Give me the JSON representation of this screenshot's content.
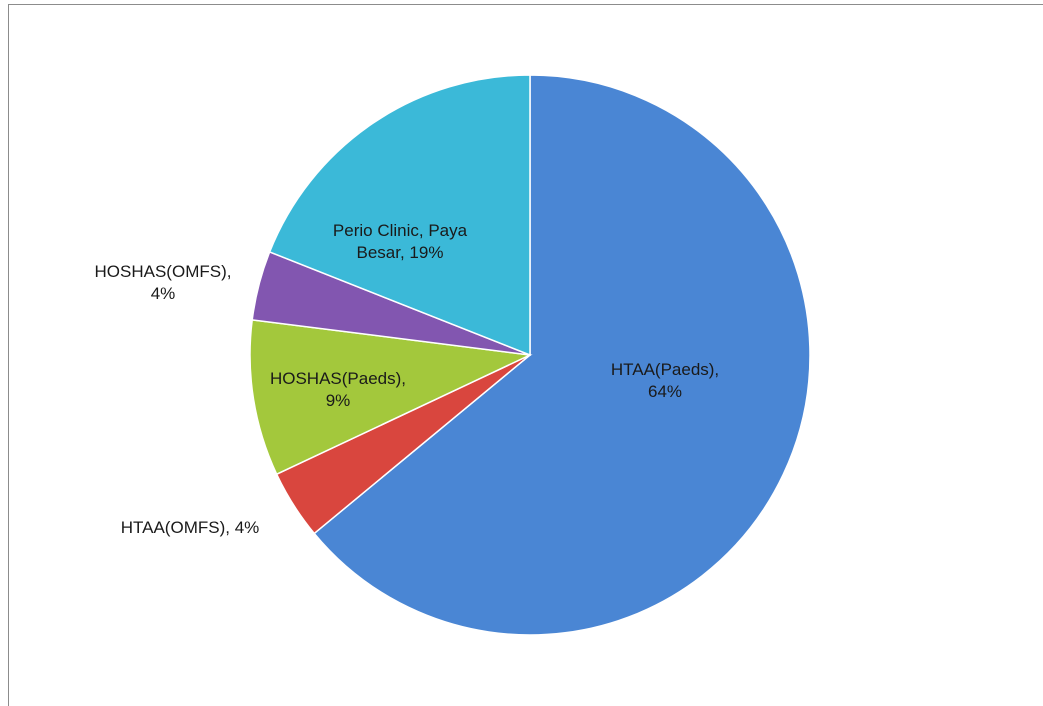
{
  "chart_data": {
    "type": "pie",
    "values": [
      64,
      4,
      9,
      4,
      19
    ],
    "value_labels": [
      "HTAA(Paeds), 64%",
      "HTAA(OMFS), 4%",
      "HOSHAS(Paeds), 9%",
      "HOSHAS(OMFS), 4%",
      "Perio Clinic, Paya Besar, 19%"
    ],
    "colors": [
      "#4a86d4",
      "#d9463e",
      "#a3c83c",
      "#8256b0",
      "#3bb9d8"
    ]
  }
}
